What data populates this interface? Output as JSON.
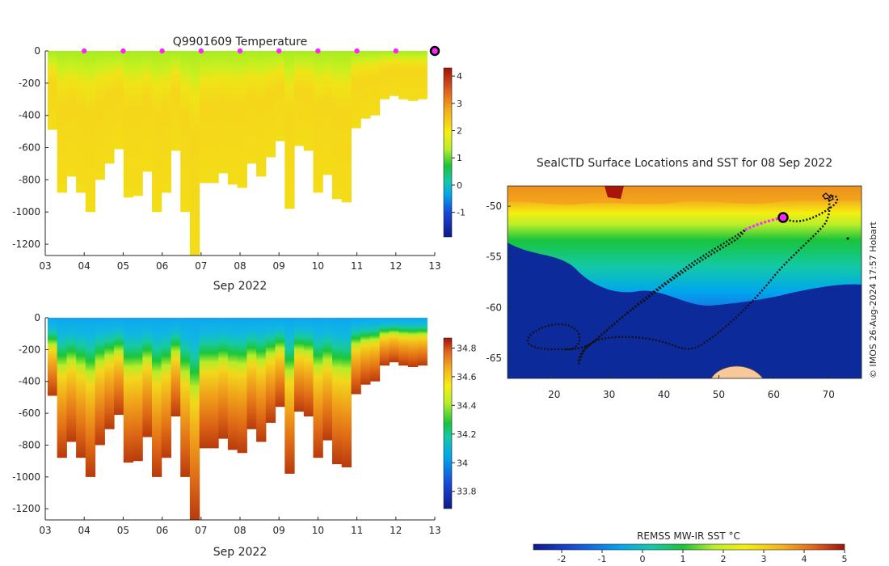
{
  "figure": {
    "credit": "© IMOS 26-Aug-2024 17:57 Hobart"
  },
  "chart_data": [
    {
      "type": "heatmap",
      "id": "temperature",
      "title": "Q9901609  Temperature",
      "xlabel": "Sep 2022",
      "ylabel": "",
      "x_ticks": [
        "03",
        "04",
        "05",
        "06",
        "07",
        "08",
        "09",
        "10",
        "11",
        "12",
        "13"
      ],
      "xlim": [
        3,
        13
      ],
      "y_ticks": [
        0,
        -200,
        -400,
        -600,
        -800,
        -1000,
        -1200
      ],
      "ylim": [
        -1270,
        0
      ],
      "colorbar": {
        "range": [
          -1.9,
          4.3
        ],
        "ticks": [
          -1,
          0,
          1,
          2,
          3,
          4
        ]
      },
      "profile_markers_day": [
        4,
        5,
        6,
        7,
        8,
        9,
        10,
        11,
        12
      ],
      "last_profile_day": 13,
      "profile_bottom_depths": [
        -490,
        -880,
        -780,
        -880,
        -1000,
        -800,
        -700,
        -610,
        -910,
        -900,
        -750,
        -1000,
        -880,
        -620,
        -1000,
        -1270,
        -820,
        -820,
        -760,
        -830,
        -850,
        -700,
        -780,
        -660,
        -560,
        -980,
        -590,
        -620,
        -880,
        -770,
        -920,
        -940,
        -480,
        -420,
        -400,
        -300,
        -280,
        -300,
        -310,
        -300
      ]
    },
    {
      "type": "heatmap",
      "id": "salinity",
      "title": "",
      "xlabel": "Sep 2022",
      "ylabel": "",
      "x_ticks": [
        "03",
        "04",
        "05",
        "06",
        "07",
        "08",
        "09",
        "10",
        "11",
        "12",
        "13"
      ],
      "xlim": [
        3,
        13
      ],
      "y_ticks": [
        0,
        -200,
        -400,
        -600,
        -800,
        -1000,
        -1200
      ],
      "ylim": [
        -1270,
        0
      ],
      "colorbar": {
        "range": [
          33.68,
          34.87
        ],
        "ticks": [
          "33.8",
          "34",
          "34.2",
          "34.4",
          "34.6",
          "34.8"
        ]
      }
    },
    {
      "type": "scatter",
      "id": "surface-map",
      "title": "SealCTD Surface Locations and SST for 08 Sep 2022",
      "xlabel": "",
      "ylabel": "",
      "xlim": [
        11.5,
        76
      ],
      "ylim": [
        -67,
        -48
      ],
      "x_ticks": [
        20,
        30,
        40,
        50,
        60,
        70
      ],
      "y_ticks": [
        -50,
        -55,
        -60,
        -65
      ],
      "last_position": {
        "lon": 61.8,
        "lat": -51.1
      },
      "colorbar": {
        "label": "REMSS MW-IR SST °C",
        "range": [
          -2.7,
          5
        ],
        "ticks": [
          "-2",
          "-1",
          "0",
          "1",
          "2",
          "3",
          "4",
          "5"
        ]
      }
    }
  ]
}
